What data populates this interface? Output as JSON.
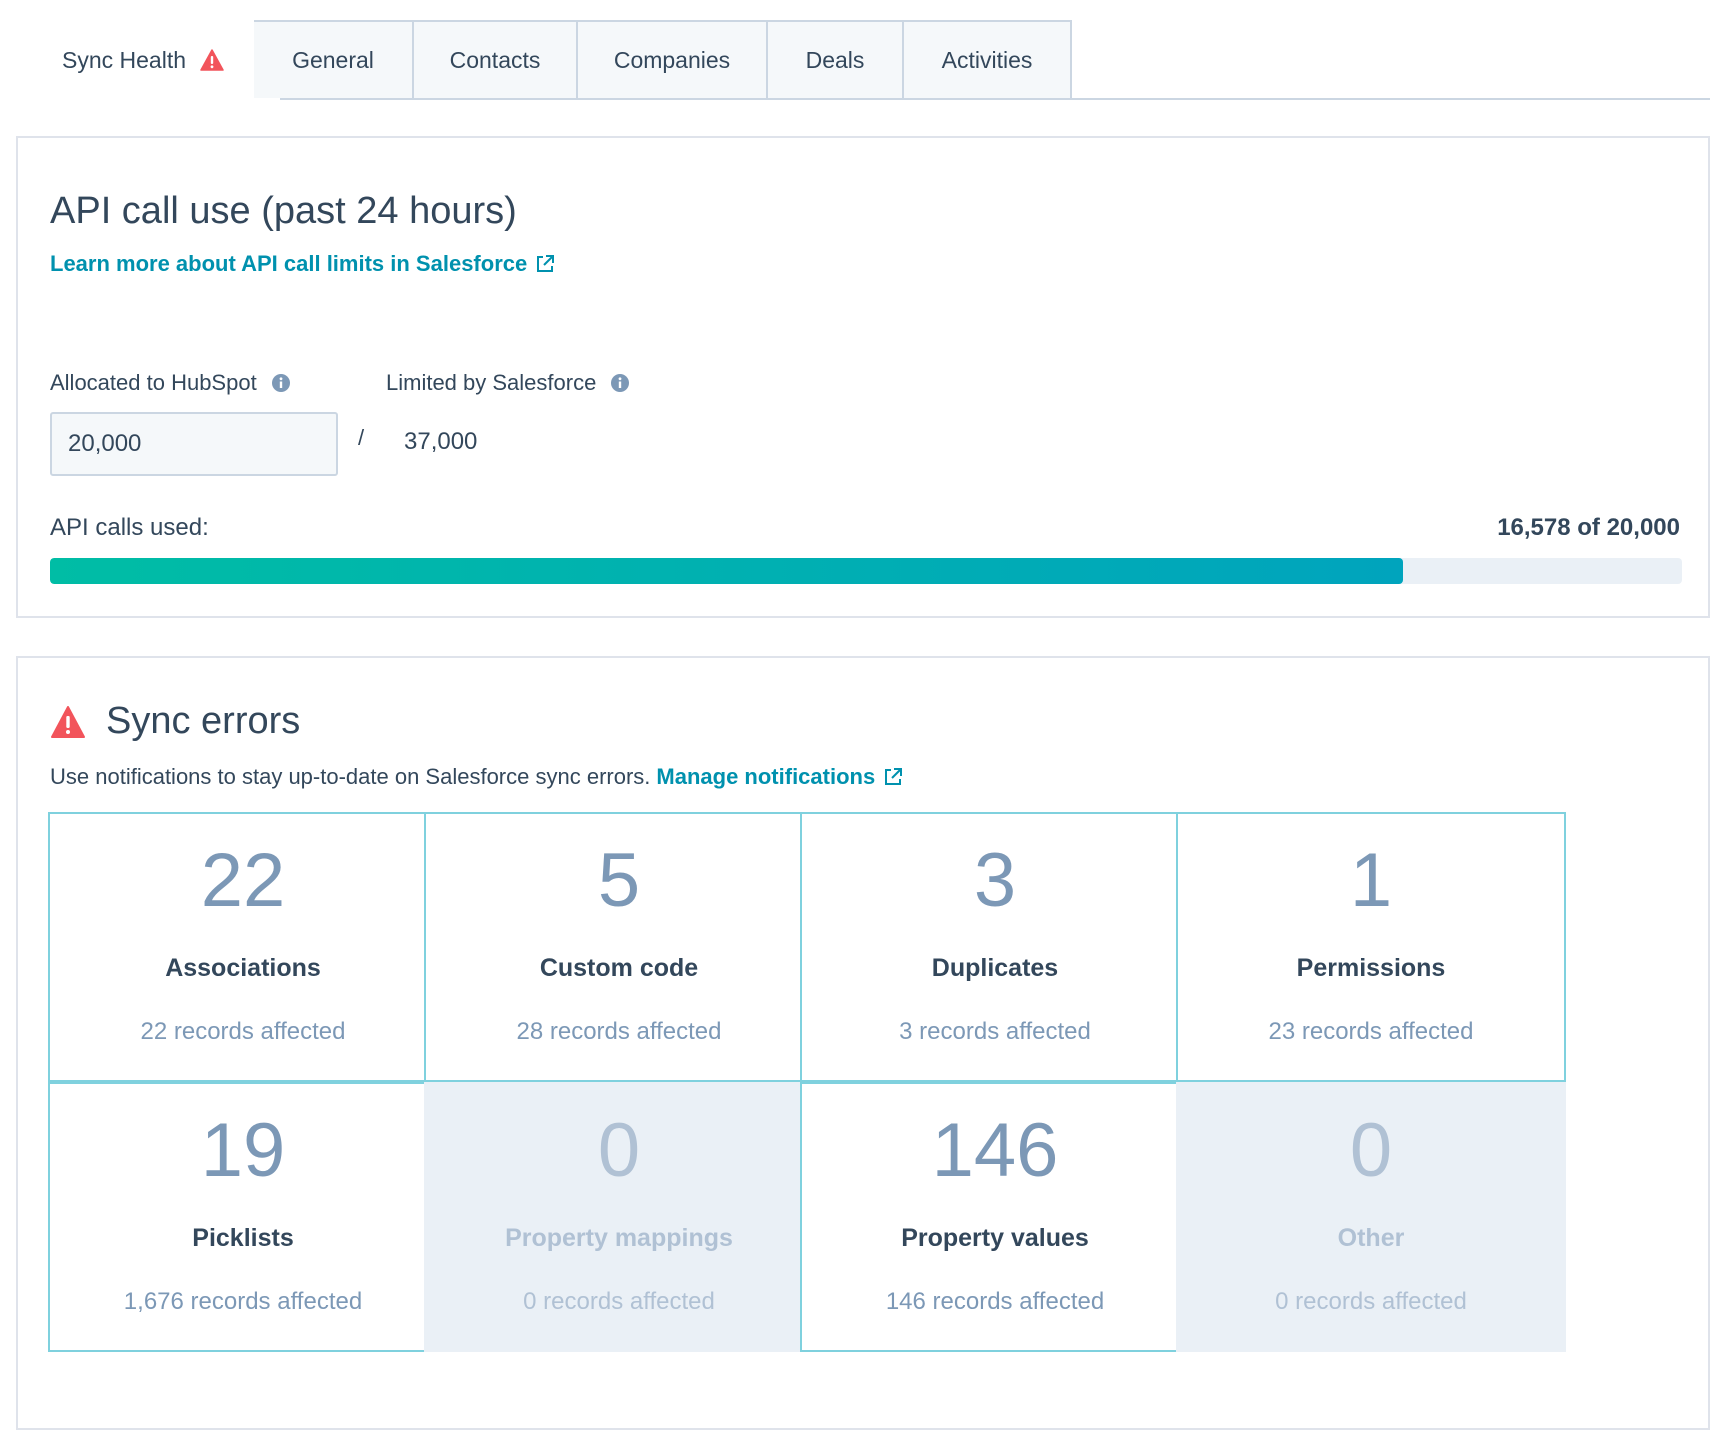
{
  "tabs": [
    {
      "label": "Sync Health",
      "active": true,
      "icon": "warning-icon"
    },
    {
      "label": "General"
    },
    {
      "label": "Contacts"
    },
    {
      "label": "Companies"
    },
    {
      "label": "Deals"
    },
    {
      "label": "Activities"
    }
  ],
  "api": {
    "title": "API call use (past 24 hours)",
    "learn_more_link": "Learn more about API call limits in Salesforce",
    "allocated_label": "Allocated to HubSpot",
    "allocated_value": "20,000",
    "limited_label": "Limited by Salesforce",
    "limited_value": "37,000",
    "separator": "/",
    "used_label": "API calls used:",
    "used_value": "16,578 of 20,000",
    "used_fraction": 0.8289
  },
  "errors": {
    "title": "Sync errors",
    "description": "Use notifications to stay up-to-date on Salesforce sync errors.",
    "manage_link": "Manage notifications",
    "tiles": [
      {
        "count": "22",
        "name": "Associations",
        "sub": "22 records affected",
        "disabled": false
      },
      {
        "count": "5",
        "name": "Custom code",
        "sub": "28 records affected",
        "disabled": false
      },
      {
        "count": "3",
        "name": "Duplicates",
        "sub": "3 records affected",
        "disabled": false
      },
      {
        "count": "1",
        "name": "Permissions",
        "sub": "23 records affected",
        "disabled": false
      },
      {
        "count": "19",
        "name": "Picklists",
        "sub": "1,676 records affected",
        "disabled": false
      },
      {
        "count": "0",
        "name": "Property mappings",
        "sub": "0 records affected",
        "disabled": true
      },
      {
        "count": "146",
        "name": "Property values",
        "sub": "146 records affected",
        "disabled": false
      },
      {
        "count": "0",
        "name": "Other",
        "sub": "0 records affected",
        "disabled": true
      }
    ]
  },
  "colors": {
    "accent_link": "#0091ae",
    "warning": "#f2545b",
    "progress_start": "#00bda5",
    "progress_end": "#00a4bd",
    "tile_border": "#7fd1de"
  }
}
